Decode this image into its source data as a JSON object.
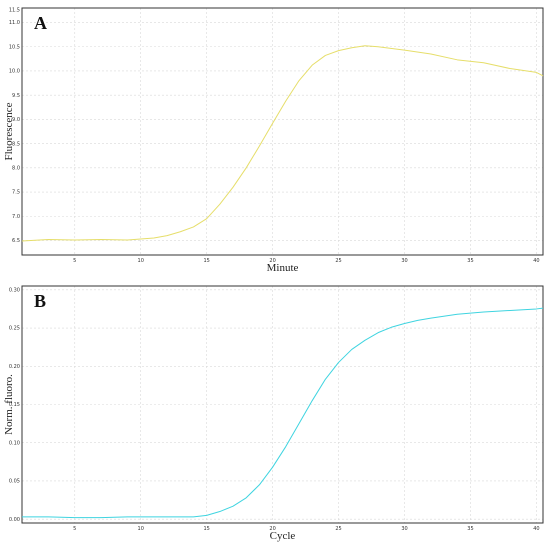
{
  "chart_data": [
    {
      "type": "line",
      "panel_label": "A",
      "xlabel": "Minute",
      "ylabel": "Fluorescence",
      "xlim": [
        1,
        40.5
      ],
      "ylim": [
        6.2,
        11.3
      ],
      "xticks": [
        5,
        10,
        15,
        20,
        25,
        30,
        35,
        40
      ],
      "yticks": [
        6.5,
        7.0,
        7.5,
        8.0,
        8.5,
        9.0,
        9.5,
        10.0,
        10.5,
        11.0,
        11.5
      ],
      "ytick_labels": [
        "6.5",
        "7.0",
        "7.5",
        "8.0",
        "8.5",
        "9.0",
        "9.5",
        "10.0",
        "10.5",
        "11.0",
        "11.5"
      ],
      "grid": true,
      "series": [
        {
          "color": "#e6de6a",
          "x": [
            1,
            3,
            5,
            7,
            9,
            11,
            12,
            13,
            14,
            15,
            16,
            17,
            18,
            19,
            20,
            21,
            22,
            23,
            24,
            25,
            26,
            27,
            28,
            30,
            32,
            34,
            36,
            38,
            40,
            40.5
          ],
          "y": [
            6.49,
            6.52,
            6.51,
            6.52,
            6.51,
            6.55,
            6.6,
            6.68,
            6.78,
            6.95,
            7.25,
            7.6,
            8.0,
            8.45,
            8.92,
            9.38,
            9.8,
            10.12,
            10.32,
            10.42,
            10.48,
            10.52,
            10.5,
            10.43,
            10.35,
            10.23,
            10.17,
            10.05,
            9.97,
            9.9
          ]
        }
      ]
    },
    {
      "type": "line",
      "panel_label": "B",
      "xlabel": "Cycle",
      "ylabel": "Norm. fluoro.",
      "xlim": [
        1,
        40.5
      ],
      "ylim": [
        -0.005,
        0.305
      ],
      "xticks": [
        5,
        10,
        15,
        20,
        25,
        30,
        35,
        40
      ],
      "yticks": [
        0.0,
        0.05,
        0.1,
        0.15,
        0.2,
        0.25,
        0.3
      ],
      "ytick_labels": [
        "0.00",
        "0.05",
        "0.10",
        "0.15",
        "0.20",
        "0.25",
        "0.30"
      ],
      "grid": true,
      "series": [
        {
          "color": "#3fd4e0",
          "x": [
            1,
            3,
            5,
            7,
            9,
            11,
            13,
            14,
            15,
            16,
            17,
            18,
            19,
            20,
            21,
            22,
            23,
            24,
            25,
            26,
            27,
            28,
            29,
            30,
            31,
            32,
            34,
            36,
            38,
            40,
            40.5
          ],
          "y": [
            0.003,
            0.003,
            0.002,
            0.002,
            0.003,
            0.003,
            0.003,
            0.003,
            0.005,
            0.01,
            0.017,
            0.028,
            0.045,
            0.068,
            0.095,
            0.125,
            0.155,
            0.183,
            0.205,
            0.222,
            0.234,
            0.244,
            0.251,
            0.256,
            0.26,
            0.263,
            0.268,
            0.271,
            0.273,
            0.275,
            0.276
          ]
        }
      ]
    }
  ]
}
